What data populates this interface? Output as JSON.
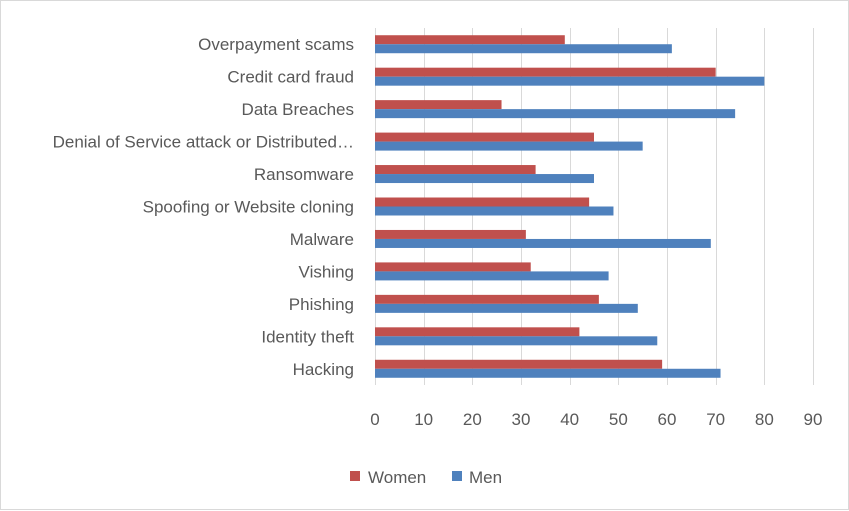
{
  "chart_data": {
    "type": "bar",
    "orientation": "horizontal",
    "categories": [
      "Overpayment scams",
      "Credit card fraud",
      "Data Breaches",
      "Denial of Service attack or Distributed…",
      "Ransomware",
      "Spoofing or Website cloning",
      "Malware",
      "Vishing",
      "Phishing",
      "Identity theft",
      "Hacking"
    ],
    "series": [
      {
        "name": "Women",
        "color": "#c0504d",
        "values": [
          39,
          70,
          26,
          45,
          33,
          44,
          31,
          32,
          46,
          42,
          59
        ]
      },
      {
        "name": "Men",
        "color": "#4f81bd",
        "values": [
          61,
          80,
          74,
          55,
          45,
          49,
          69,
          48,
          54,
          58,
          71
        ]
      }
    ],
    "xlim": [
      0,
      90
    ],
    "xticks": [
      "0",
      "10",
      "20",
      "30",
      "40",
      "50",
      "60",
      "70",
      "80",
      "90"
    ],
    "grid": "vertical",
    "legend": "bottom"
  }
}
